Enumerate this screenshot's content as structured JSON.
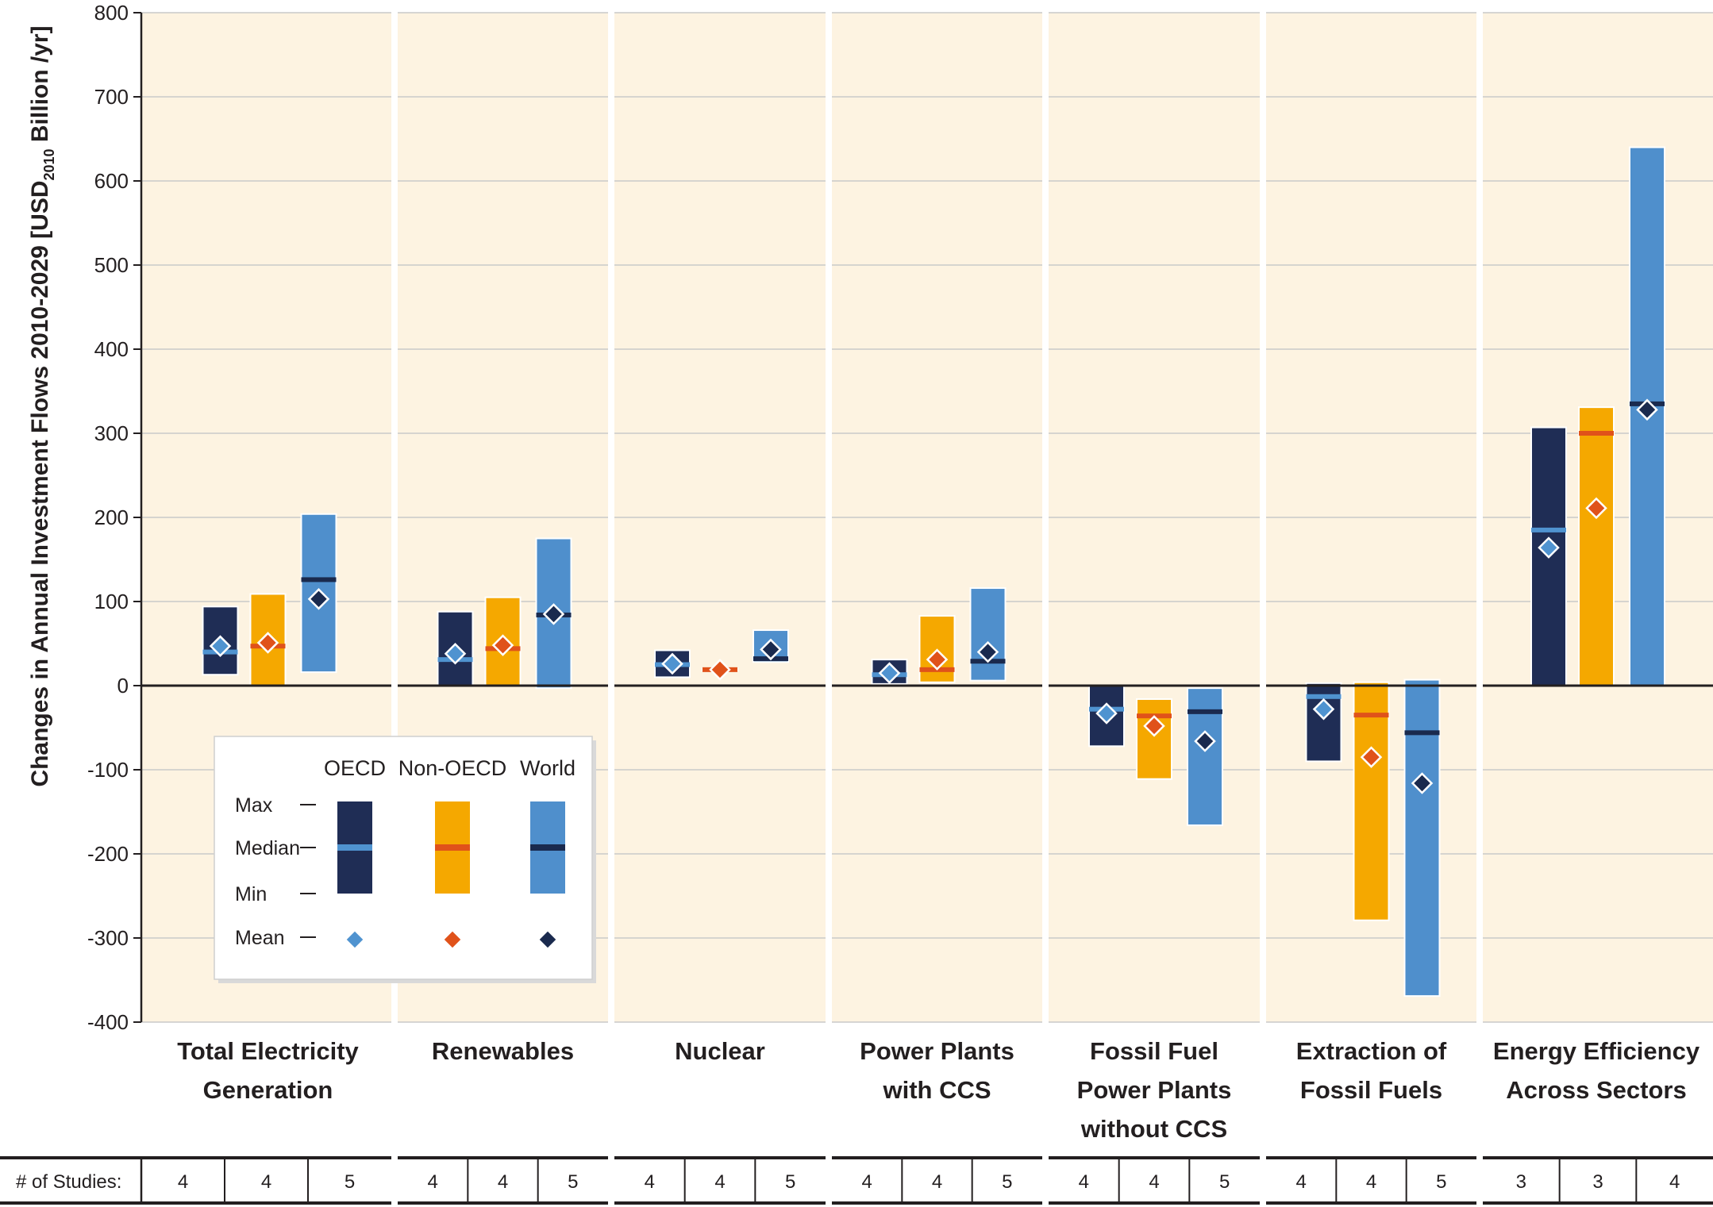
{
  "chart_data": {
    "type": "bar",
    "ylabel_main": "Changes in Annual Investment Flows 2010-2029 [USD",
    "ylabel_sub": "2010",
    "ylabel_end": " Billion /yr]",
    "ylim": [
      -400,
      800
    ],
    "yticks": [
      800,
      700,
      600,
      500,
      400,
      300,
      200,
      100,
      0,
      -100,
      -200,
      -300,
      -400
    ],
    "ytick_labels": [
      "800",
      "700",
      "600",
      "500",
      "400",
      "300",
      "200",
      "100",
      "0",
      "-100",
      "-200",
      "-300",
      "-400"
    ],
    "grid": true,
    "series_styles": [
      {
        "name": "OECD",
        "fill": "#1f2d55",
        "median_color": "#4f93d0",
        "mean_color": "#4f93d0"
      },
      {
        "name": "Non-OECD",
        "fill": "#f5a800",
        "median_color": "#e0521a",
        "mean_color": "#e0521a"
      },
      {
        "name": "World",
        "fill": "#4f8fcc",
        "median_color": "#1a2a4e",
        "mean_color": "#1a2a4e"
      }
    ],
    "categories": [
      {
        "label_lines": [
          "Total Electricity",
          "Generation"
        ],
        "studies": [
          "4",
          "4",
          "5"
        ],
        "bars": [
          {
            "min": 13,
            "max": 94,
            "median": 40,
            "mean": 47
          },
          {
            "min": 0,
            "max": 109,
            "median": 47,
            "mean": 51
          },
          {
            "min": 16,
            "max": 204,
            "median": 126,
            "mean": 103
          }
        ]
      },
      {
        "label_lines": [
          "Renewables"
        ],
        "studies": [
          "4",
          "4",
          "5"
        ],
        "bars": [
          {
            "min": 0,
            "max": 88,
            "median": 31,
            "mean": 38
          },
          {
            "min": 0,
            "max": 105,
            "median": 44,
            "mean": 48
          },
          {
            "min": -3,
            "max": 175,
            "median": 84,
            "mean": 85
          }
        ]
      },
      {
        "label_lines": [
          "Nuclear"
        ],
        "studies": [
          "4",
          "4",
          "5"
        ],
        "bars": [
          {
            "min": 10,
            "max": 42,
            "median": 25,
            "mean": 26
          },
          {
            "min": 18,
            "max": 20,
            "median": 19,
            "mean": 19
          },
          {
            "min": 28,
            "max": 66,
            "median": 32,
            "mean": 43
          }
        ]
      },
      {
        "label_lines": [
          "Power Plants",
          "with CCS"
        ],
        "studies": [
          "4",
          "4",
          "5"
        ],
        "bars": [
          {
            "min": 2,
            "max": 31,
            "median": 13,
            "mean": 15
          },
          {
            "min": 4,
            "max": 83,
            "median": 19,
            "mean": 31
          },
          {
            "min": 6,
            "max": 116,
            "median": 29,
            "mean": 40
          }
        ]
      },
      {
        "label_lines": [
          "Fossil Fuel",
          "Power Plants",
          "without CCS"
        ],
        "studies": [
          "4",
          "4",
          "5"
        ],
        "bars": [
          {
            "min": -72,
            "max": 0,
            "median": -28,
            "mean": -33
          },
          {
            "min": -111,
            "max": -16,
            "median": -36,
            "mean": -48
          },
          {
            "min": -166,
            "max": -3,
            "median": -31,
            "mean": -66
          }
        ]
      },
      {
        "label_lines": [
          "Extraction of",
          "Fossil Fuels"
        ],
        "studies": [
          "4",
          "4",
          "5"
        ],
        "bars": [
          {
            "min": -90,
            "max": 3,
            "median": -13,
            "mean": -28
          },
          {
            "min": -279,
            "max": 4,
            "median": -35,
            "mean": -85
          },
          {
            "min": -369,
            "max": 7,
            "median": -56,
            "mean": -116
          }
        ]
      },
      {
        "label_lines": [
          "Energy Efficiency",
          "Across Sectors"
        ],
        "studies": [
          "3",
          "3",
          "4"
        ],
        "bars": [
          {
            "min": 0,
            "max": 307,
            "median": 185,
            "mean": 164
          },
          {
            "min": 0,
            "max": 331,
            "median": 300,
            "mean": 211
          },
          {
            "min": 0,
            "max": 640,
            "median": 335,
            "mean": 328
          }
        ]
      }
    ],
    "studies_label": "# of Studies:",
    "legend": {
      "columns": [
        "OECD",
        "Non-OECD",
        "World"
      ],
      "rows": [
        "Max",
        "Median",
        "Min",
        "Mean"
      ]
    }
  }
}
